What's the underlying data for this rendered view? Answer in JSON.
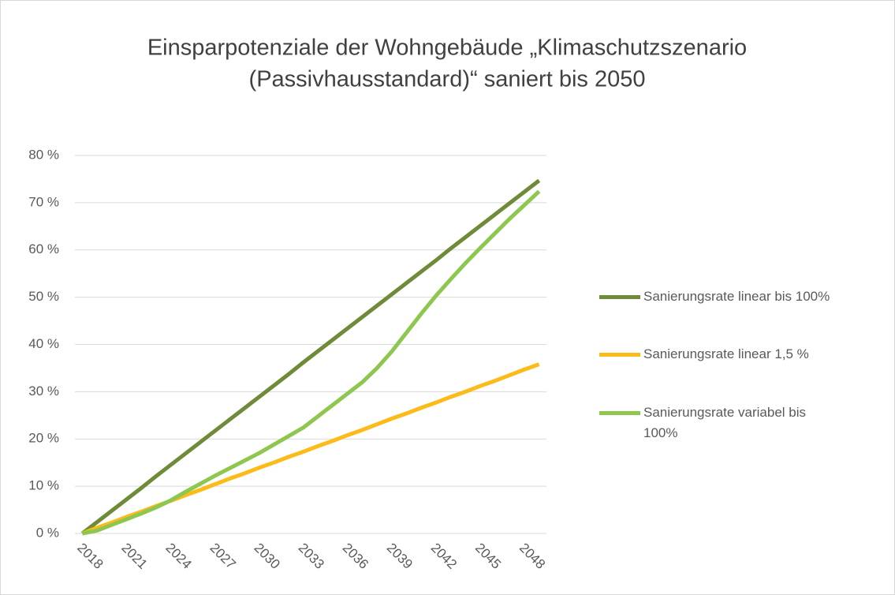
{
  "chart_data": {
    "type": "line",
    "title": [
      "Einsparpotenziale der Wohngebäude „Klimaschutzszenario",
      "(Passivhausstandard)“ saniert bis 2050"
    ],
    "x": [
      2018,
      2019,
      2020,
      2021,
      2022,
      2023,
      2024,
      2025,
      2026,
      2027,
      2028,
      2029,
      2030,
      2031,
      2032,
      2033,
      2034,
      2035,
      2036,
      2037,
      2038,
      2039,
      2040,
      2041,
      2042,
      2043,
      2044,
      2045,
      2046,
      2047,
      2048,
      2049
    ],
    "xlim": [
      2017.5,
      2049.5
    ],
    "xticks": [
      2018,
      2021,
      2024,
      2027,
      2030,
      2033,
      2036,
      2039,
      2042,
      2045,
      2048
    ],
    "ylim": [
      0,
      80
    ],
    "yticks": [
      {
        "value": 0,
        "label": "0 %"
      },
      {
        "value": 10,
        "label": "10 %"
      },
      {
        "value": 20,
        "label": "20 %"
      },
      {
        "value": 30,
        "label": "30 %"
      },
      {
        "value": 40,
        "label": "40 %"
      },
      {
        "value": 50,
        "label": "50 %"
      },
      {
        "value": 60,
        "label": "60 %"
      },
      {
        "value": 70,
        "label": "70 %"
      },
      {
        "value": 80,
        "label": "80 %"
      }
    ],
    "grid": true,
    "legend": "right",
    "series": [
      {
        "name": "Sanierungsrate linear bis 100%",
        "color": "#6f8b38",
        "values": [
          0,
          2.4,
          4.8,
          7.2,
          9.6,
          12.1,
          14.5,
          16.9,
          19.3,
          21.7,
          24.1,
          26.5,
          28.9,
          31.3,
          33.7,
          36.2,
          38.6,
          41.0,
          43.4,
          45.8,
          48.2,
          50.6,
          53.0,
          55.4,
          57.8,
          60.3,
          62.7,
          65.1,
          67.5,
          69.9,
          72.3,
          74.7
        ]
      },
      {
        "name": "Sanierungsrate linear 1,5 %",
        "color": "#fbbc1a",
        "values": [
          0,
          1.2,
          2.3,
          3.5,
          4.6,
          5.8,
          6.9,
          8.1,
          9.2,
          10.4,
          11.6,
          12.7,
          13.9,
          15.0,
          16.2,
          17.3,
          18.5,
          19.6,
          20.8,
          21.9,
          23.1,
          24.3,
          25.4,
          26.6,
          27.7,
          28.9,
          30.0,
          31.2,
          32.3,
          33.5,
          34.7,
          35.8
        ]
      },
      {
        "name": "Sanierungsrate variabel bis 100%",
        "color": "#8dc74f",
        "values": [
          0,
          0.6,
          1.8,
          3.0,
          4.2,
          5.5,
          7.0,
          8.8,
          10.5,
          12.2,
          13.8,
          15.4,
          17.0,
          18.8,
          20.6,
          22.4,
          24.8,
          27.2,
          29.6,
          32.0,
          35.0,
          38.5,
          42.5,
          46.5,
          50.3,
          53.8,
          57.2,
          60.4,
          63.5,
          66.6,
          69.5,
          72.4
        ]
      }
    ]
  }
}
